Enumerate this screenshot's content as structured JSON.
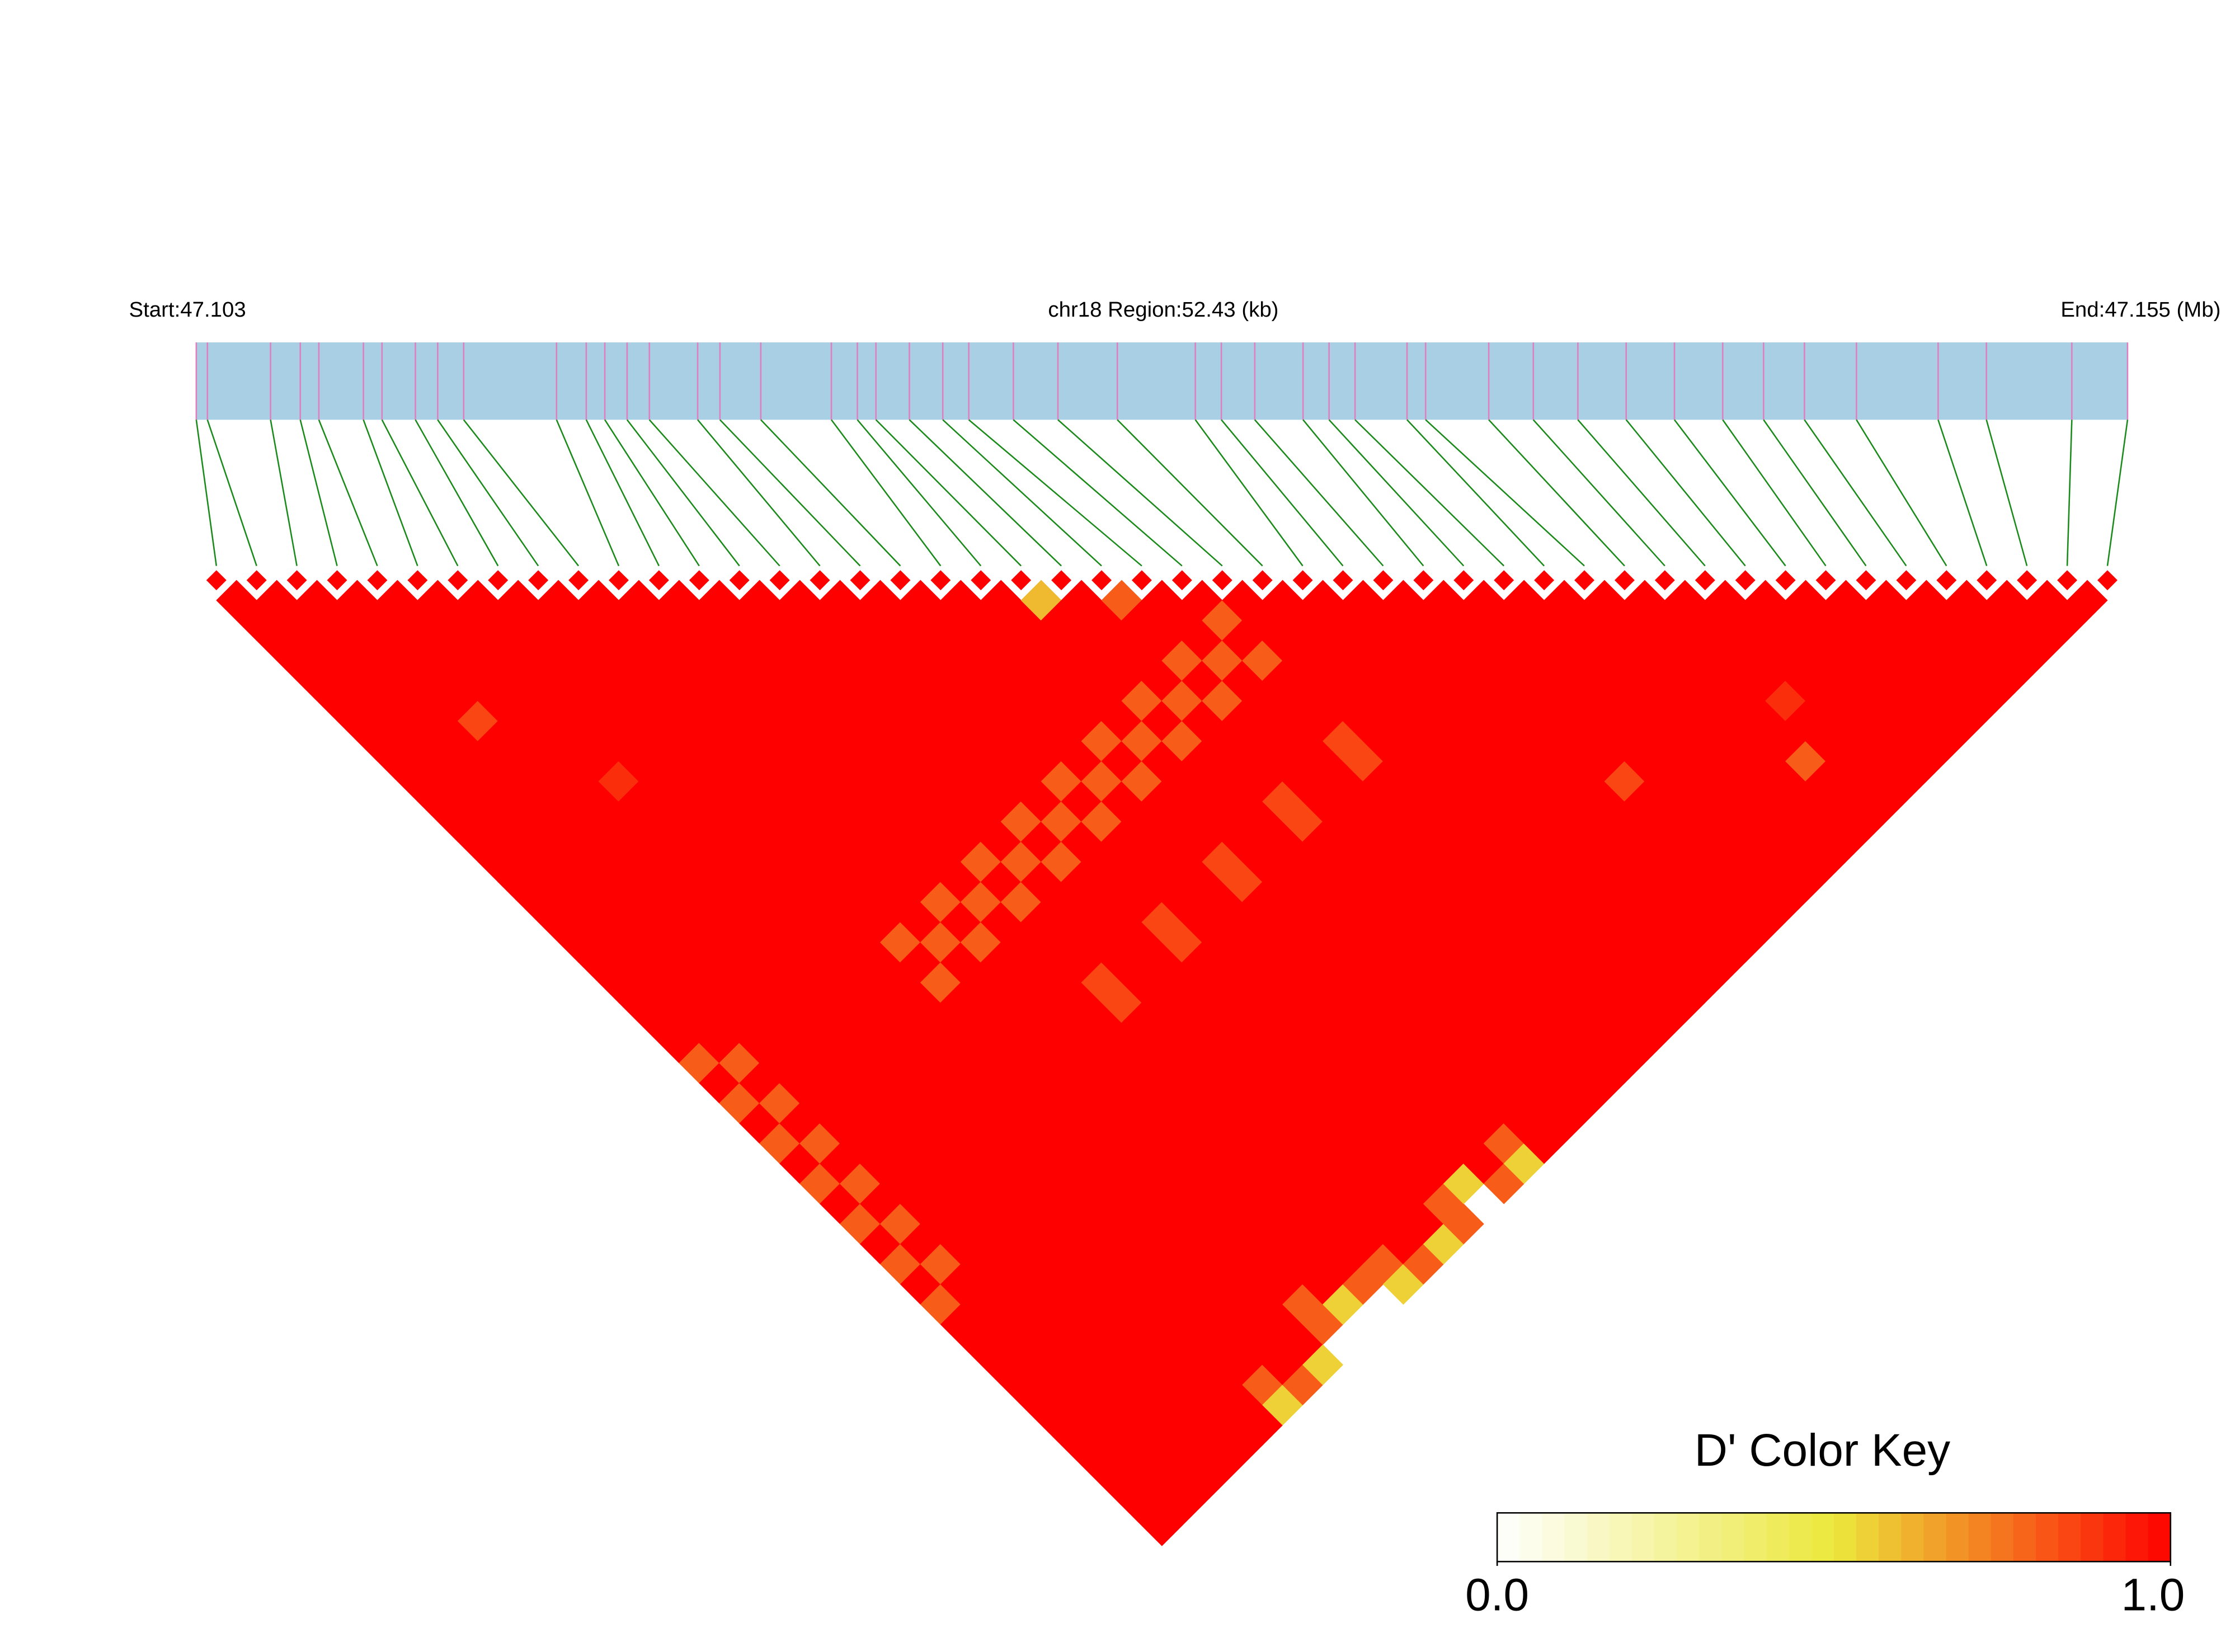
{
  "chart_data": {
    "type": "ld-heatmap",
    "start_label": "Start:47.103",
    "region_label": "chr18 Region:52.43 (kb)",
    "end_label": "End:47.155 (Mb)",
    "xlim": [
      47.103,
      47.155
    ],
    "positions": [
      47.103,
      47.1033,
      47.105,
      47.1058,
      47.1063,
      47.1075,
      47.108,
      47.1089,
      47.1095,
      47.1102,
      47.1127,
      47.1135,
      47.114,
      47.1146,
      47.1152,
      47.1165,
      47.1171,
      47.1182,
      47.1201,
      47.1208,
      47.1213,
      47.1222,
      47.1231,
      47.1238,
      47.125,
      47.1262,
      47.1278,
      47.1299,
      47.1306,
      47.1315,
      47.1328,
      47.1335,
      47.1342,
      47.1356,
      47.1361,
      47.1378,
      47.139,
      47.1402,
      47.1415,
      47.1428,
      47.1441,
      47.1452,
      47.1463,
      47.1477,
      47.1499,
      47.1512,
      47.1535,
      47.155
    ],
    "ld_matrix": [
      [
        1,
        1,
        1,
        1,
        1,
        1,
        1,
        1,
        1,
        1,
        1,
        1,
        1,
        1,
        1,
        1,
        1,
        1,
        1,
        1,
        1,
        1,
        1,
        0.8,
        1,
        0.8,
        1,
        0.8,
        1,
        0.8,
        1,
        0.8,
        1,
        0.8,
        1,
        0.8,
        1,
        1,
        1,
        1,
        1,
        1,
        1,
        1,
        1,
        1,
        1
      ],
      [
        1,
        1,
        1,
        1,
        1,
        1,
        1,
        1,
        1,
        1,
        1,
        1,
        1,
        1,
        1,
        1,
        1,
        1,
        1,
        1,
        1,
        1,
        1,
        0.8,
        1,
        0.8,
        1,
        0.8,
        1,
        0.8,
        1,
        0.8,
        1,
        0.8,
        1,
        1,
        1,
        1,
        1,
        1,
        1,
        1,
        1,
        1,
        1,
        1
      ],
      [
        1,
        1,
        1,
        1,
        1,
        1,
        1,
        1,
        1,
        1,
        1,
        1,
        1,
        1,
        1,
        1,
        1,
        1,
        1,
        1,
        1,
        1,
        1,
        1,
        1,
        1,
        1,
        1,
        1,
        1,
        1,
        1,
        1,
        1,
        1,
        1,
        1,
        1,
        1,
        1,
        1,
        1,
        1,
        1,
        1
      ],
      [
        1,
        1,
        1,
        1,
        1,
        1,
        0.85,
        1,
        1,
        1,
        1,
        1,
        1,
        1,
        1,
        1,
        1,
        1,
        1,
        1,
        1,
        1,
        1,
        1,
        1,
        1,
        1,
        1,
        1,
        1,
        1,
        1,
        1,
        1,
        1,
        1,
        1,
        1,
        1,
        1,
        1,
        1,
        1,
        1
      ],
      [
        1,
        1,
        1,
        1,
        1,
        1,
        1,
        1,
        1,
        1,
        1,
        1,
        1,
        1,
        1,
        1,
        1,
        1,
        1,
        1,
        1,
        1,
        1,
        1,
        1,
        1,
        1,
        1,
        1,
        1,
        1,
        1,
        1,
        1,
        1,
        1,
        1,
        1,
        1,
        1,
        1,
        1,
        1
      ],
      [
        1,
        1,
        1,
        1,
        1,
        1,
        1,
        1,
        1,
        0.9,
        1,
        1,
        1,
        1,
        1,
        1,
        1,
        1,
        1,
        1,
        1,
        1,
        1,
        1,
        1,
        1,
        1,
        1,
        1,
        1,
        1,
        1,
        1,
        1,
        1,
        1,
        1,
        1,
        1,
        1,
        1,
        1
      ],
      [
        1,
        1,
        1,
        1,
        1,
        1,
        1,
        1,
        1,
        1,
        1,
        1,
        1,
        1,
        1,
        1,
        1,
        1,
        1,
        1,
        1,
        1,
        1,
        1,
        1,
        1,
        1,
        1,
        1,
        1,
        1,
        1,
        1,
        1,
        1,
        1,
        1,
        1,
        1,
        0.8,
        0.55
      ],
      [
        1,
        1,
        1,
        1,
        1,
        1,
        1,
        1,
        1,
        1,
        1,
        1,
        1,
        1,
        1,
        1,
        1,
        1,
        1,
        1,
        1,
        1,
        1,
        1,
        1,
        1,
        1,
        1,
        1,
        1,
        1,
        1,
        1,
        1,
        1,
        1,
        1,
        1,
        1,
        0.8
      ],
      [
        1,
        1,
        1,
        1,
        1,
        1,
        1,
        1,
        1,
        1,
        1,
        1,
        1,
        1,
        1,
        1,
        1,
        0.8,
        1,
        0.8,
        1,
        1,
        1,
        1,
        1,
        1,
        1,
        1,
        1,
        1,
        1,
        1,
        1,
        1,
        1,
        1,
        1,
        1,
        0.55
      ],
      [
        1,
        1,
        1,
        1,
        1,
        1,
        1,
        1,
        1,
        1,
        1,
        1,
        1,
        1,
        1,
        1,
        1,
        0.8,
        1,
        1,
        1,
        1,
        1,
        1,
        1,
        1,
        1,
        1,
        1,
        1,
        1,
        1,
        1,
        1,
        1,
        0.8,
        0.8
      ],
      [
        1,
        1,
        1,
        1,
        1,
        1,
        1,
        1,
        1,
        1,
        1,
        1,
        1,
        1,
        1,
        0.8,
        1,
        0.8,
        1,
        1,
        1,
        1,
        1,
        1,
        1,
        1,
        1,
        1,
        1,
        1,
        1,
        1,
        1,
        1,
        1,
        0.55
      ],
      [
        1,
        1,
        1,
        1,
        1,
        1,
        1,
        1,
        1,
        1,
        1,
        1,
        1,
        1,
        1,
        0.8,
        1,
        1,
        1,
        1,
        1,
        1,
        1,
        1,
        1,
        1,
        1,
        1,
        1,
        1,
        1,
        1,
        1,
        1,
        0.8
      ],
      [
        1,
        1,
        1,
        1,
        1,
        1,
        1,
        1,
        1,
        1,
        1,
        1,
        1,
        0.8,
        1,
        0.8,
        1,
        1,
        1,
        0.85,
        0.85,
        1,
        1,
        1,
        1,
        1,
        1,
        1,
        1,
        1,
        1,
        1,
        1,
        0.8,
        0.55
      ],
      [
        1,
        1,
        1,
        1,
        1,
        1,
        1,
        1,
        1,
        1,
        1,
        1,
        1,
        0.8,
        1,
        1,
        1,
        1,
        1,
        1,
        1,
        1,
        1,
        1,
        1,
        1,
        1,
        1,
        1,
        1,
        1,
        1,
        1,
        0.8
      ],
      [
        1,
        1,
        1,
        1,
        1,
        1,
        1,
        1,
        1,
        1,
        1,
        0.8,
        1,
        0.8,
        1,
        1,
        1,
        1,
        1,
        1,
        1,
        1,
        1,
        1,
        1,
        1,
        1,
        1,
        1,
        1,
        1,
        1,
        0.55
      ],
      [
        1,
        1,
        1,
        1,
        1,
        1,
        1,
        1,
        1,
        1,
        1,
        0.8,
        1,
        1,
        1,
        1,
        0.85,
        0.85,
        1,
        1,
        1,
        1,
        1,
        1,
        1,
        1,
        1,
        1,
        1,
        1,
        0.8,
        0.8
      ],
      [
        1,
        1,
        1,
        1,
        1,
        1,
        1,
        1,
        1,
        0.8,
        1,
        0.8,
        1,
        1,
        1,
        1,
        1,
        1,
        1,
        1,
        1,
        1,
        1,
        1,
        1,
        1,
        1,
        1,
        1,
        0.55
      ],
      [
        1,
        1,
        1,
        1,
        1,
        1,
        1,
        1,
        1,
        0.8,
        1,
        1,
        1,
        1,
        1,
        1,
        1,
        1,
        1,
        1,
        1,
        1,
        1,
        1,
        1,
        1,
        1,
        1,
        1,
        0.8
      ],
      [
        1,
        1,
        1,
        1,
        1,
        1,
        1,
        0.8,
        1,
        0.8,
        1,
        1,
        1,
        0.85,
        0.85,
        1,
        1,
        1,
        1,
        1,
        1,
        1,
        1,
        1,
        1,
        1,
        1,
        0.8,
        0.55
      ],
      [
        1,
        1,
        1,
        1,
        1,
        1,
        1,
        0.8,
        1,
        1,
        1,
        1,
        1,
        1,
        1,
        1,
        1,
        1,
        1,
        1,
        1,
        1,
        1,
        1,
        1,
        1,
        1,
        1
      ],
      [
        0.6,
        1,
        1,
        1,
        1,
        0.8,
        1,
        0.8,
        1,
        1,
        1,
        1,
        1,
        1,
        1,
        1,
        1,
        1,
        1,
        1,
        1,
        1,
        1,
        1,
        1,
        1,
        1
      ],
      [
        1,
        1,
        1,
        1,
        1,
        0.8,
        1,
        1,
        1,
        1,
        0.85,
        0.85,
        1,
        1,
        1,
        1,
        1,
        1,
        1,
        1,
        1,
        1,
        1,
        1,
        1,
        1
      ],
      [
        0.8,
        1,
        1,
        0.8,
        1,
        0.8,
        1,
        1,
        1,
        1,
        1,
        1,
        1,
        1,
        1,
        1,
        1,
        1,
        1,
        1,
        1,
        1,
        1,
        1,
        1
      ],
      [
        1,
        1,
        1,
        0.8,
        1,
        1,
        1,
        1,
        1,
        1,
        1,
        1,
        1,
        1,
        1,
        1,
        1,
        1,
        1,
        1,
        1,
        1,
        1,
        1
      ],
      [
        1,
        0.8,
        1,
        0.8,
        1,
        1,
        1,
        0.85,
        0.85,
        1,
        1,
        1,
        1,
        1,
        1,
        1,
        1,
        1,
        1,
        1,
        1,
        1,
        1
      ],
      [
        1,
        1,
        1,
        1,
        1,
        1,
        1,
        1,
        1,
        1,
        1,
        1,
        1,
        1,
        1,
        1,
        1,
        1,
        1,
        1,
        1,
        1
      ],
      [
        1,
        1,
        1,
        1,
        1,
        1,
        1,
        1,
        1,
        1,
        1,
        1,
        1,
        1,
        1,
        1,
        1,
        1,
        1,
        1,
        1
      ],
      [
        1,
        1,
        1,
        1,
        1,
        1,
        1,
        1,
        1,
        1,
        1,
        1,
        1,
        1,
        1,
        1,
        1,
        1,
        1,
        1
      ],
      [
        1,
        1,
        1,
        1,
        1,
        1,
        1,
        1,
        1,
        1,
        1,
        1,
        1,
        1,
        1,
        1,
        1,
        1,
        1
      ],
      [
        1,
        1,
        1,
        1,
        1,
        1,
        1,
        1,
        1,
        1,
        1,
        1,
        1,
        1,
        1,
        1,
        1,
        1
      ],
      [
        1,
        1,
        1,
        1,
        1,
        1,
        1,
        1,
        1,
        0.85,
        1,
        1,
        1,
        1,
        1,
        1,
        1
      ],
      [
        1,
        1,
        1,
        1,
        1,
        1,
        1,
        1,
        1,
        1,
        1,
        1,
        1,
        1,
        1,
        1
      ],
      [
        1,
        1,
        1,
        1,
        1,
        1,
        1,
        1,
        1,
        1,
        1,
        1,
        1,
        1,
        1
      ],
      [
        1,
        1,
        1,
        1,
        1,
        1,
        1,
        1,
        1,
        1,
        1,
        1,
        1,
        1
      ],
      [
        1,
        1,
        1,
        1,
        1,
        1,
        1,
        1,
        1,
        1,
        1,
        1,
        1
      ],
      [
        1,
        1,
        1,
        1,
        1,
        1,
        1,
        1,
        0.8,
        1,
        1,
        1
      ],
      [
        1,
        1,
        1,
        1,
        1,
        0.9,
        1,
        1,
        1,
        1,
        1
      ],
      [
        1,
        1,
        1,
        1,
        1,
        1,
        1,
        1,
        1,
        1
      ],
      [
        1,
        1,
        1,
        1,
        1,
        1,
        1,
        1,
        1
      ],
      [
        1,
        1,
        1,
        1,
        1,
        1,
        1,
        1
      ],
      [
        1,
        1,
        1,
        1,
        1,
        1,
        1
      ],
      [
        1,
        1,
        1,
        1,
        1,
        1
      ],
      [
        1,
        1,
        1,
        1,
        1
      ],
      [
        1,
        1,
        1,
        1
      ],
      [
        1,
        1,
        1
      ],
      [
        1,
        1
      ],
      [
        1
      ]
    ],
    "colors": [
      "#ffffff",
      "#ebe83c",
      "#ff0000"
    ],
    "bar_color": "#a8cfe3",
    "snp_line_color": "#e07fc0",
    "connector_color": "#1a8a1a",
    "key_title": "D' Color Key",
    "key_lim": [
      0,
      1
    ],
    "key_ticks": [
      {
        "value": 0,
        "label": "0.0"
      },
      {
        "value": 1,
        "label": "1.0"
      }
    ]
  }
}
